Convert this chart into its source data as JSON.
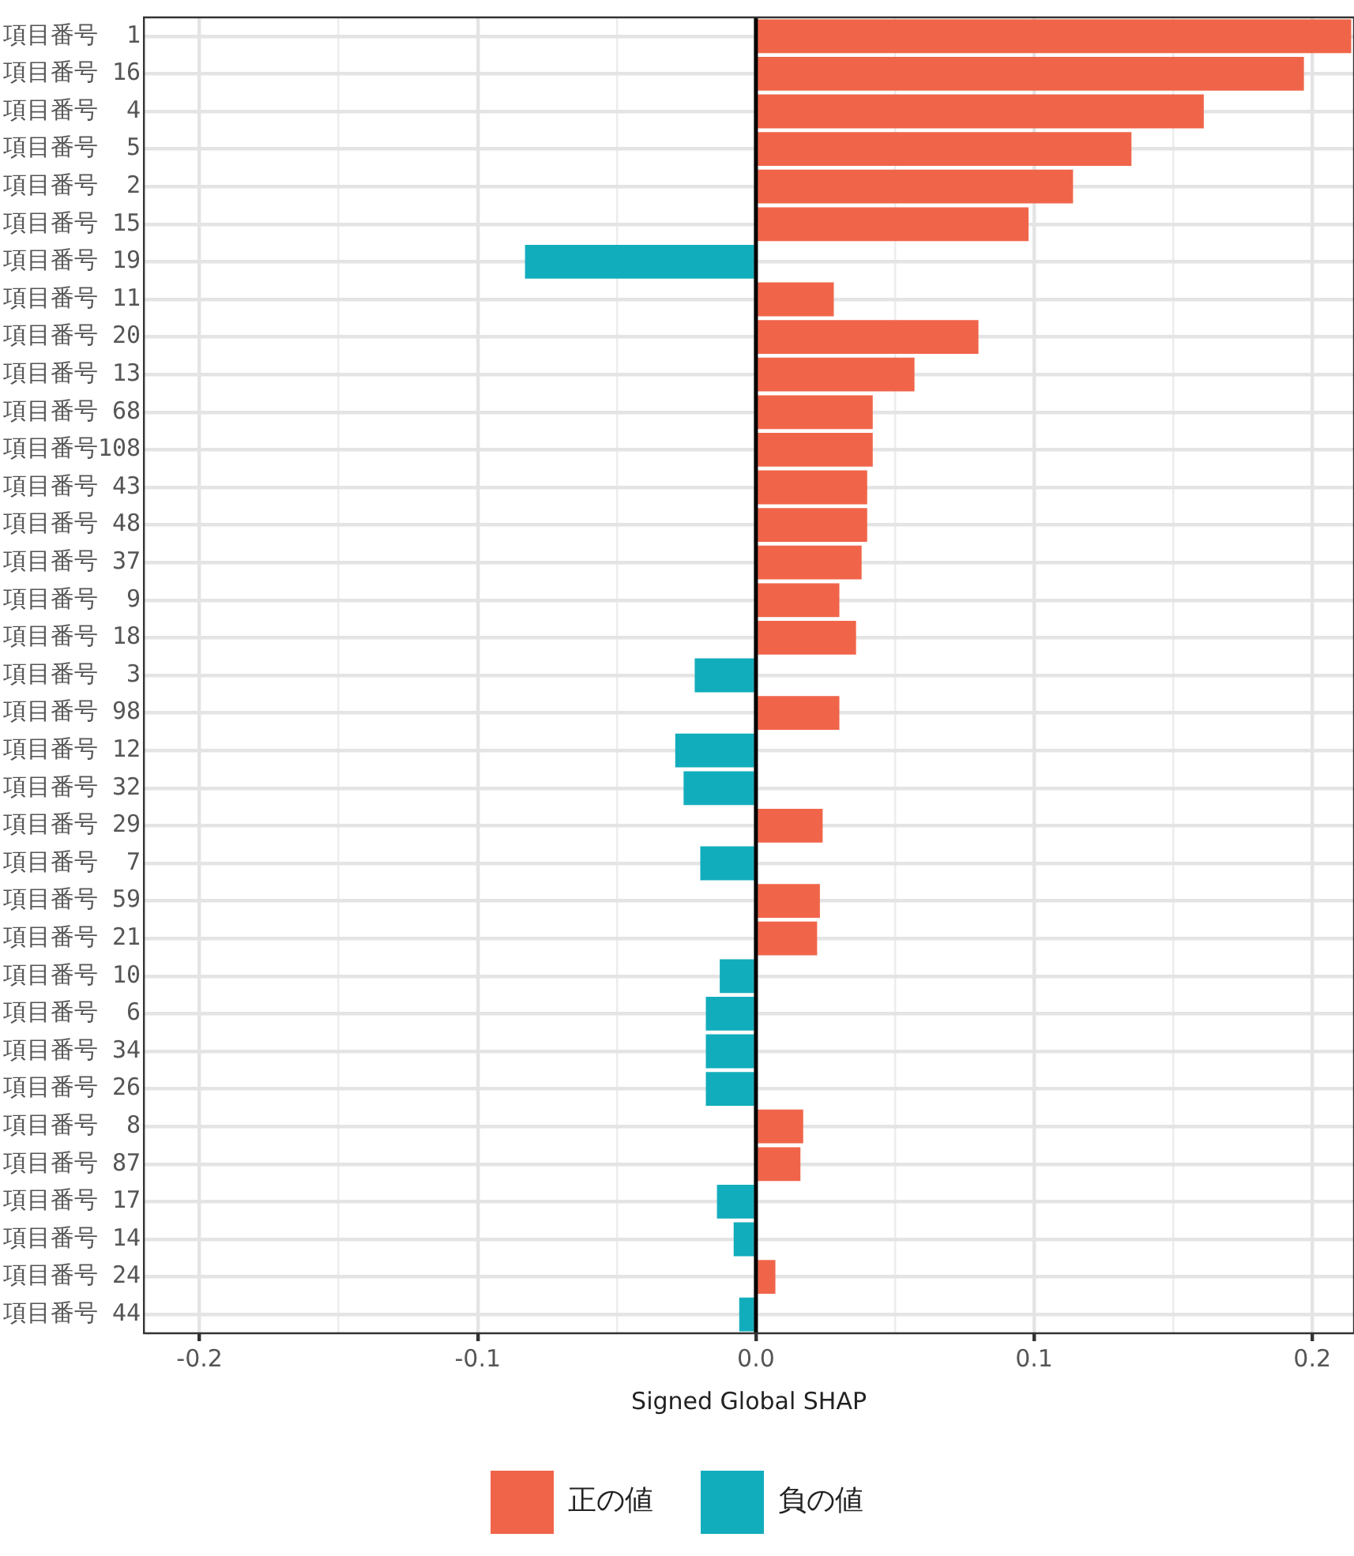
{
  "chart_data": {
    "type": "bar",
    "orientation": "horizontal",
    "xlabel": "Signed Global SHAP",
    "categories": [
      "項目番号  1",
      "項目番号 16",
      "項目番号  4",
      "項目番号  5",
      "項目番号  2",
      "項目番号 15",
      "項目番号 19",
      "項目番号 11",
      "項目番号 20",
      "項目番号 13",
      "項目番号 68",
      "項目番号108",
      "項目番号 43",
      "項目番号 48",
      "項目番号 37",
      "項目番号  9",
      "項目番号 18",
      "項目番号  3",
      "項目番号 98",
      "項目番号 12",
      "項目番号 32",
      "項目番号 29",
      "項目番号  7",
      "項目番号 59",
      "項目番号 21",
      "項目番号 10",
      "項目番号  6",
      "項目番号 34",
      "項目番号 26",
      "項目番号  8",
      "項目番号 87",
      "項目番号 17",
      "項目番号 14",
      "項目番号 24",
      "項目番号 44"
    ],
    "series": [
      {
        "name": "正の値",
        "color": "#f0654a",
        "values": [
          0.214,
          0.197,
          0.161,
          0.135,
          0.114,
          0.098,
          null,
          0.028,
          0.08,
          0.057,
          0.042,
          0.042,
          0.04,
          0.04,
          0.038,
          0.03,
          0.036,
          null,
          0.03,
          null,
          null,
          0.024,
          null,
          0.023,
          0.022,
          null,
          null,
          null,
          null,
          0.017,
          0.016,
          null,
          null,
          0.007,
          null
        ]
      },
      {
        "name": "負の値",
        "color": "#12adbc",
        "values": [
          null,
          null,
          null,
          null,
          null,
          null,
          -0.083,
          null,
          null,
          null,
          null,
          null,
          null,
          null,
          null,
          null,
          null,
          -0.022,
          null,
          -0.029,
          -0.026,
          null,
          -0.02,
          null,
          null,
          -0.013,
          -0.018,
          -0.018,
          -0.018,
          null,
          null,
          -0.014,
          -0.008,
          null,
          -0.006
        ]
      }
    ],
    "xlim": [
      -0.22,
      0.215
    ],
    "xticks": [
      -0.2,
      {
        "value": -0.15,
        "label": null
      },
      -0.1,
      {
        "value": -0.05,
        "label": null
      },
      {
        "value": 0,
        "label": "0.0"
      },
      {
        "value": 0.05,
        "label": null
      },
      0.1,
      {
        "value": 0.15,
        "label": null
      },
      0.2
    ],
    "ref_lines": [
      {
        "axis": "x",
        "value": 0,
        "color": "#000000"
      }
    ],
    "grid": true,
    "legend": "bottom"
  }
}
